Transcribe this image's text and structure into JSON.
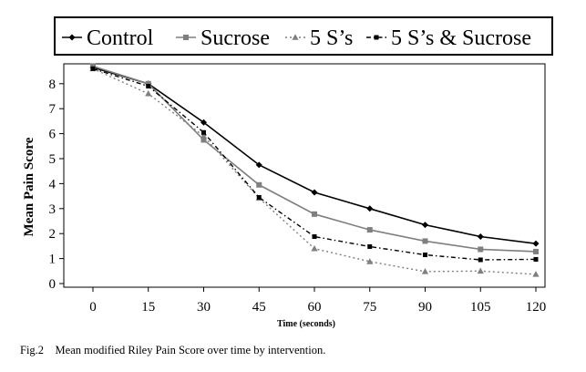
{
  "chart_data": {
    "type": "line",
    "x": [
      0,
      15,
      30,
      45,
      60,
      75,
      90,
      105,
      120
    ],
    "series": [
      {
        "name": "Control",
        "values": [
          8.65,
          8.0,
          6.45,
          4.75,
          3.65,
          3.0,
          2.35,
          1.88,
          1.6
        ],
        "color": "#000000",
        "dash": "solid",
        "marker": "diamond"
      },
      {
        "name": "Sucrose",
        "values": [
          8.7,
          8.0,
          5.75,
          3.95,
          2.78,
          2.15,
          1.7,
          1.37,
          1.28
        ],
        "color": "#7f7f7f",
        "dash": "solid",
        "marker": "square"
      },
      {
        "name": "5 S’s",
        "values": [
          8.6,
          7.6,
          5.9,
          3.42,
          1.4,
          0.88,
          0.48,
          0.5,
          0.37
        ],
        "color": "#7f7f7f",
        "dash": "dotted",
        "marker": "triangle"
      },
      {
        "name": "5 S’s & Sucrose",
        "values": [
          8.6,
          7.9,
          6.05,
          3.45,
          1.88,
          1.48,
          1.15,
          0.95,
          0.97
        ],
        "color": "#000000",
        "dash": "dashdot",
        "marker": "circle"
      }
    ],
    "xlabel": "Time (seconds)",
    "ylabel": "Mean Pain Score",
    "xticks": [
      "0",
      "15",
      "30",
      "45",
      "60",
      "75",
      "90",
      "105",
      "120"
    ],
    "yticks": [
      "0",
      "1",
      "2",
      "3",
      "4",
      "5",
      "6",
      "7",
      "8"
    ],
    "ylim": [
      0,
      9
    ],
    "grid": false,
    "legend_position": "top"
  },
  "caption": "Fig.2    Mean modified Riley Pain Score over time by intervention."
}
